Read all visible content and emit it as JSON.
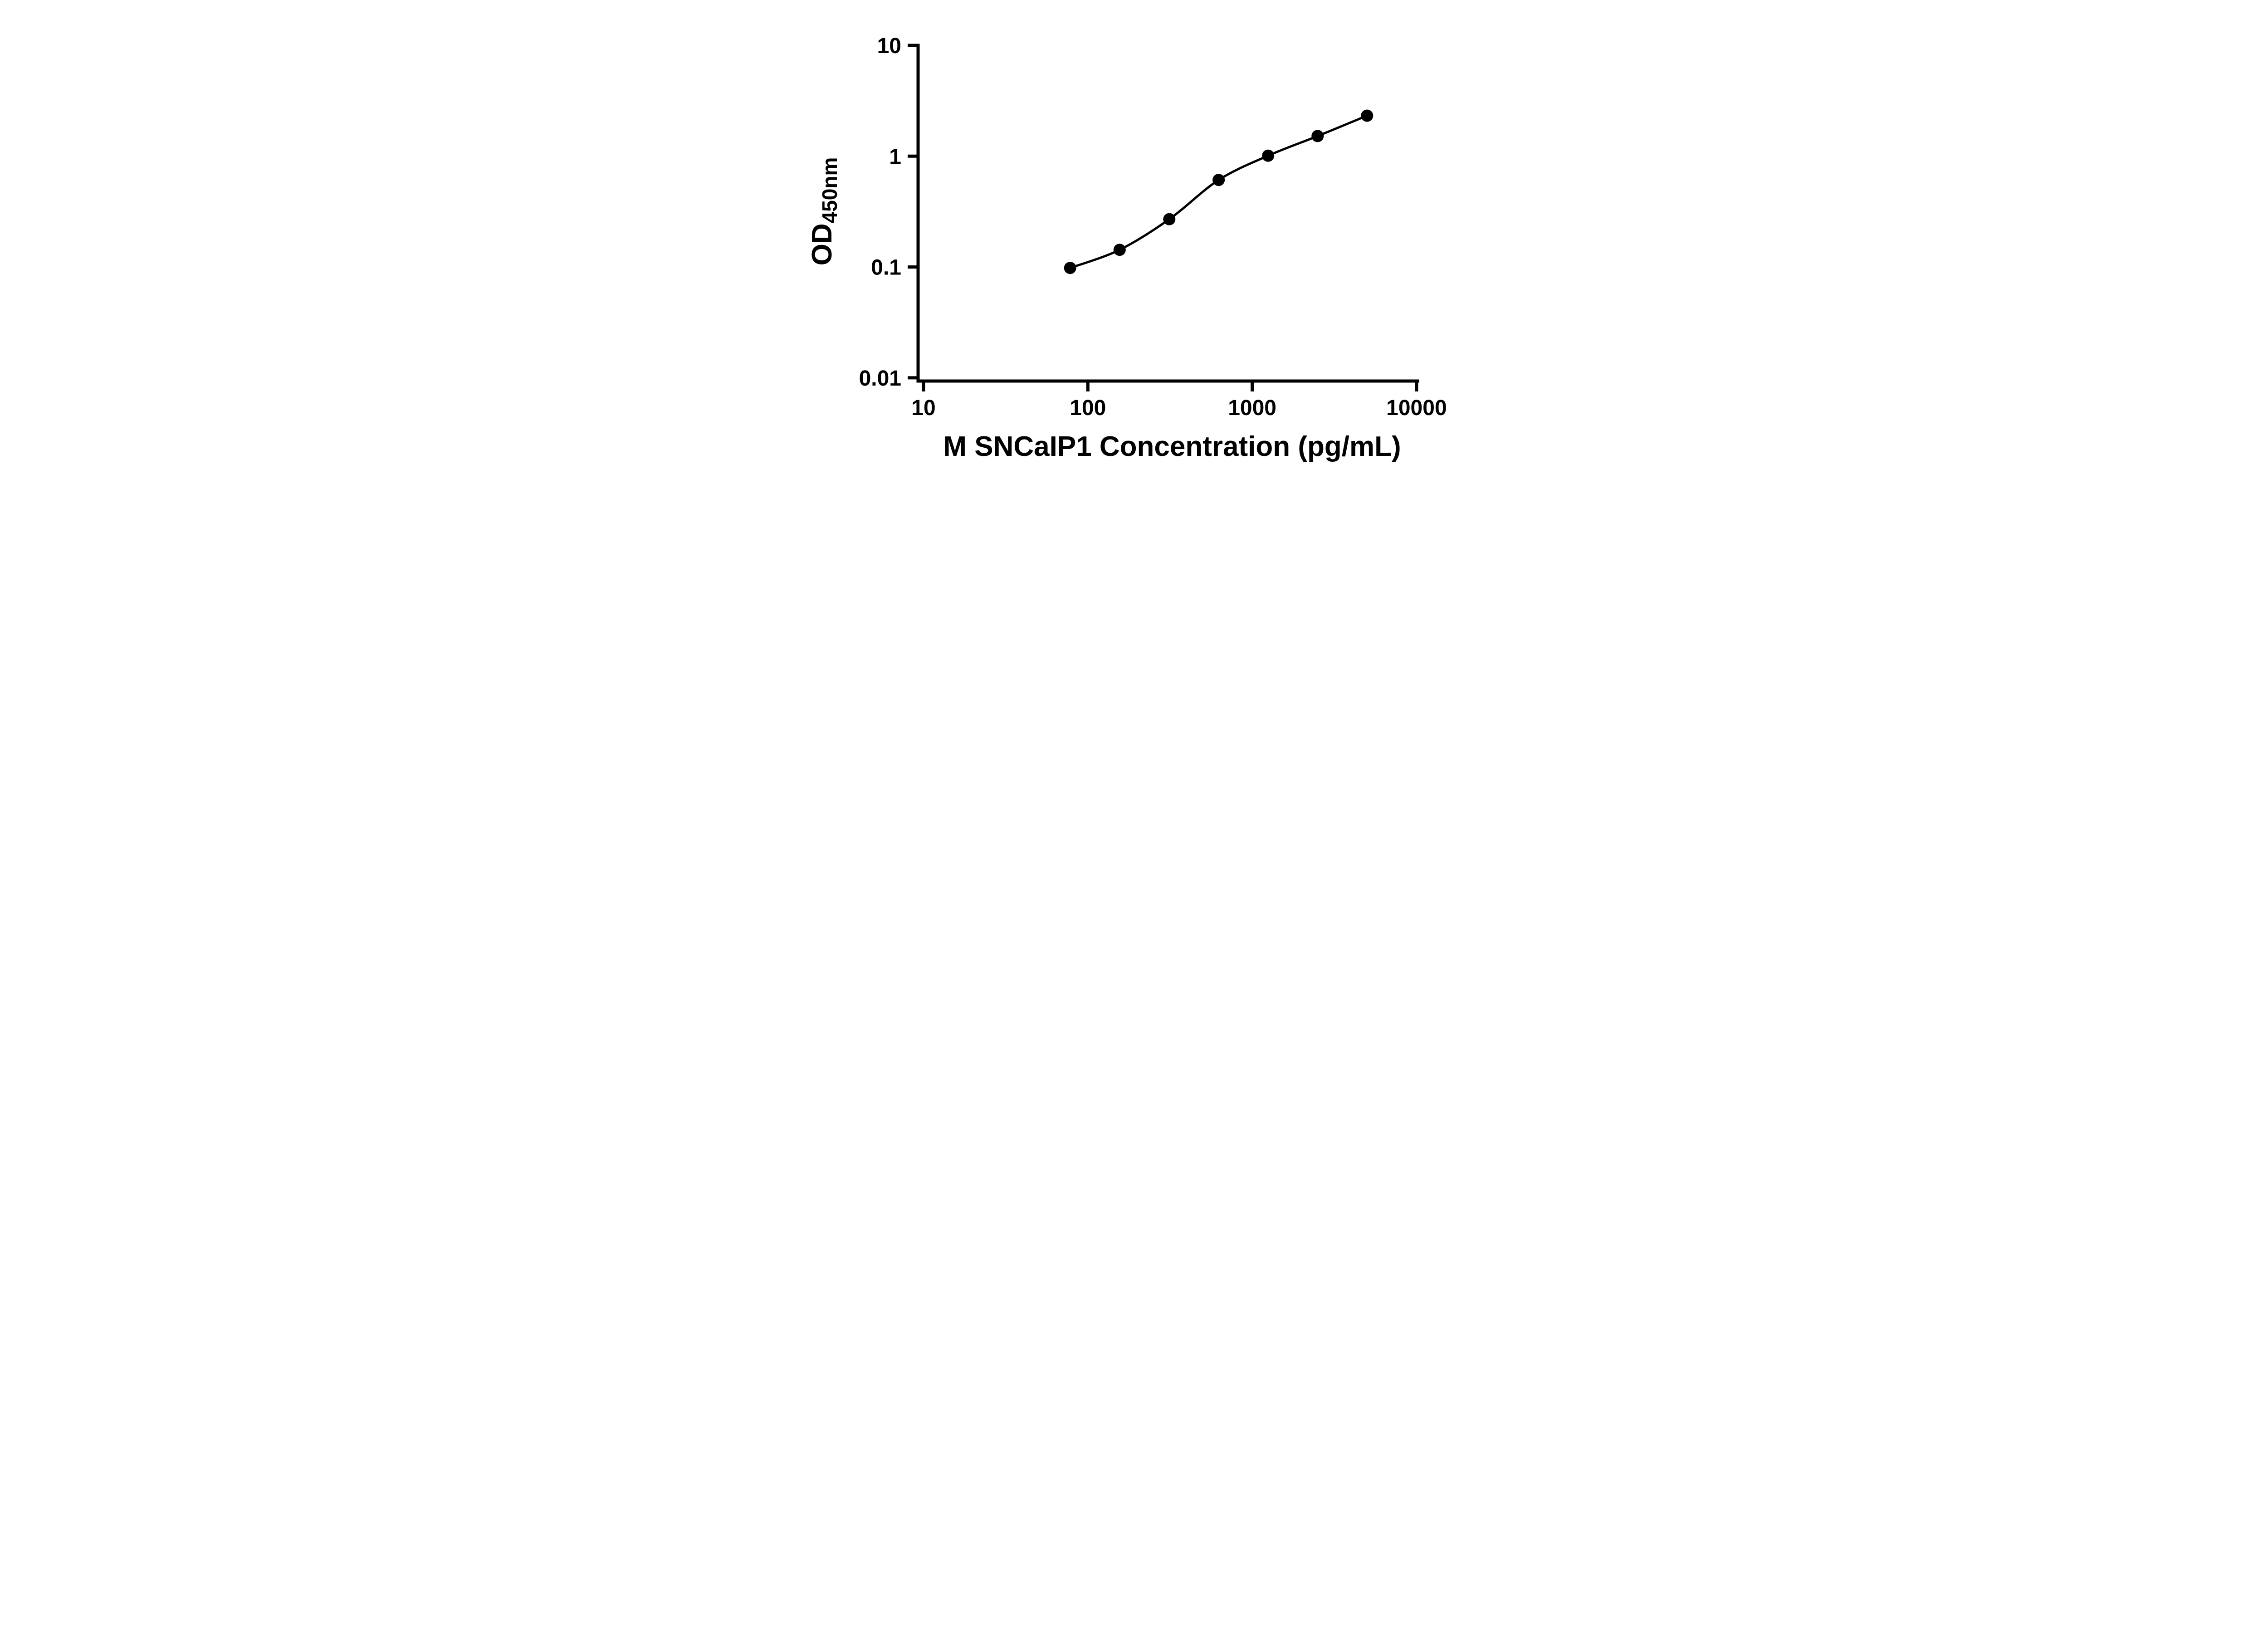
{
  "chart_data": {
    "type": "scatter",
    "title": "",
    "xlabel": "M SNCaIP1 Concentration (pg/mL)",
    "ylabel_main": "OD",
    "ylabel_sub": "450nm",
    "x_scale": "log",
    "y_scale": "log",
    "xlim": [
      10,
      10000
    ],
    "ylim": [
      0.01,
      10
    ],
    "x_ticks": [
      10,
      100,
      1000,
      10000
    ],
    "x_tick_labels": [
      "10",
      "100",
      "1000",
      "10000"
    ],
    "y_ticks": [
      10,
      1,
      0.1,
      0.01
    ],
    "y_tick_labels": [
      "10",
      "1",
      "0.1",
      "0.01"
    ],
    "grid": false,
    "legend": "none",
    "background": "#ffffff",
    "axis_color": "#000000",
    "series": [
      {
        "marker": "circle",
        "color": "#000000",
        "trend_line": "smooth",
        "points": [
          {
            "x": 78,
            "y": 0.098
          },
          {
            "x": 156,
            "y": 0.143
          },
          {
            "x": 313,
            "y": 0.27
          },
          {
            "x": 625,
            "y": 0.61
          },
          {
            "x": 1250,
            "y": 1.01
          },
          {
            "x": 2500,
            "y": 1.52
          },
          {
            "x": 5000,
            "y": 2.32
          }
        ]
      }
    ]
  }
}
